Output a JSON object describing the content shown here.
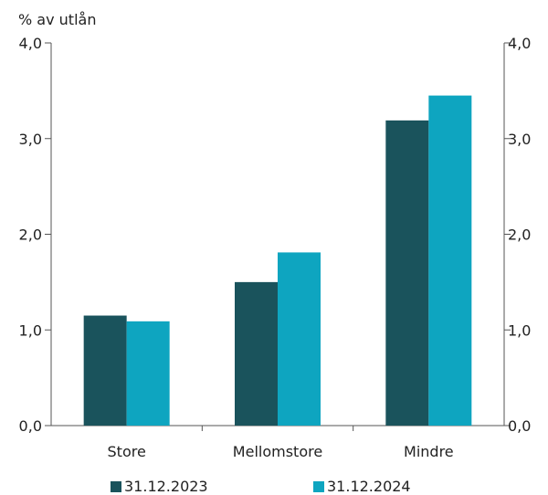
{
  "chart_data": {
    "type": "bar",
    "title": "",
    "ylabel": "% av utlån",
    "xlabel": "",
    "categories": [
      "Store",
      "Mellomstore",
      "Mindre"
    ],
    "series": [
      {
        "name": "31.12.2023",
        "color": "#1a535c",
        "values": [
          1.15,
          1.5,
          3.19
        ]
      },
      {
        "name": "31.12.2024",
        "color": "#0ea5c0",
        "values": [
          1.09,
          1.81,
          3.45
        ]
      }
    ],
    "ylim": [
      0,
      4
    ],
    "yticks": [
      "0,0",
      "1,0",
      "2,0",
      "3,0",
      "4,0"
    ],
    "ytick_values": [
      0,
      1,
      2,
      3,
      4
    ],
    "right_axis": true,
    "grid": false,
    "legend_position": "bottom"
  }
}
